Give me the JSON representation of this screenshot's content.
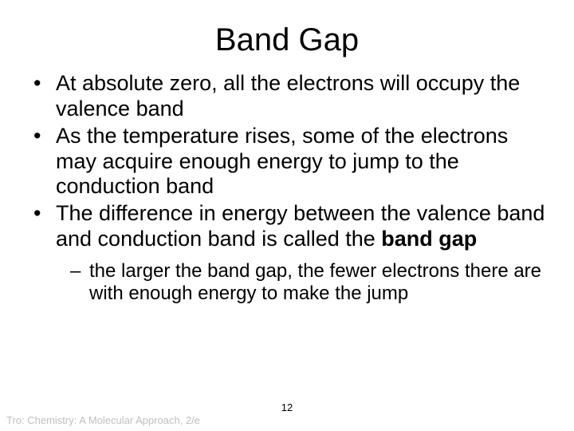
{
  "title": "Band Gap",
  "bullets": [
    {
      "text": "At absolute zero, all the electrons will occupy the valence band"
    },
    {
      "text": "As the temperature rises, some of the electrons  may acquire enough energy to jump to the conduction band"
    },
    {
      "text_before": "The difference in energy between the valence band and conduction band is called the ",
      "bold": "band gap"
    }
  ],
  "sub_bullet": "the larger the band gap, the fewer electrons there are with enough energy to make the jump",
  "footer": "Tro: Chemistry: A Molecular Approach, 2/e",
  "page_number": "12",
  "colors": {
    "background": "#ffffff",
    "text": "#000000",
    "footer": "#bfbfbf"
  }
}
